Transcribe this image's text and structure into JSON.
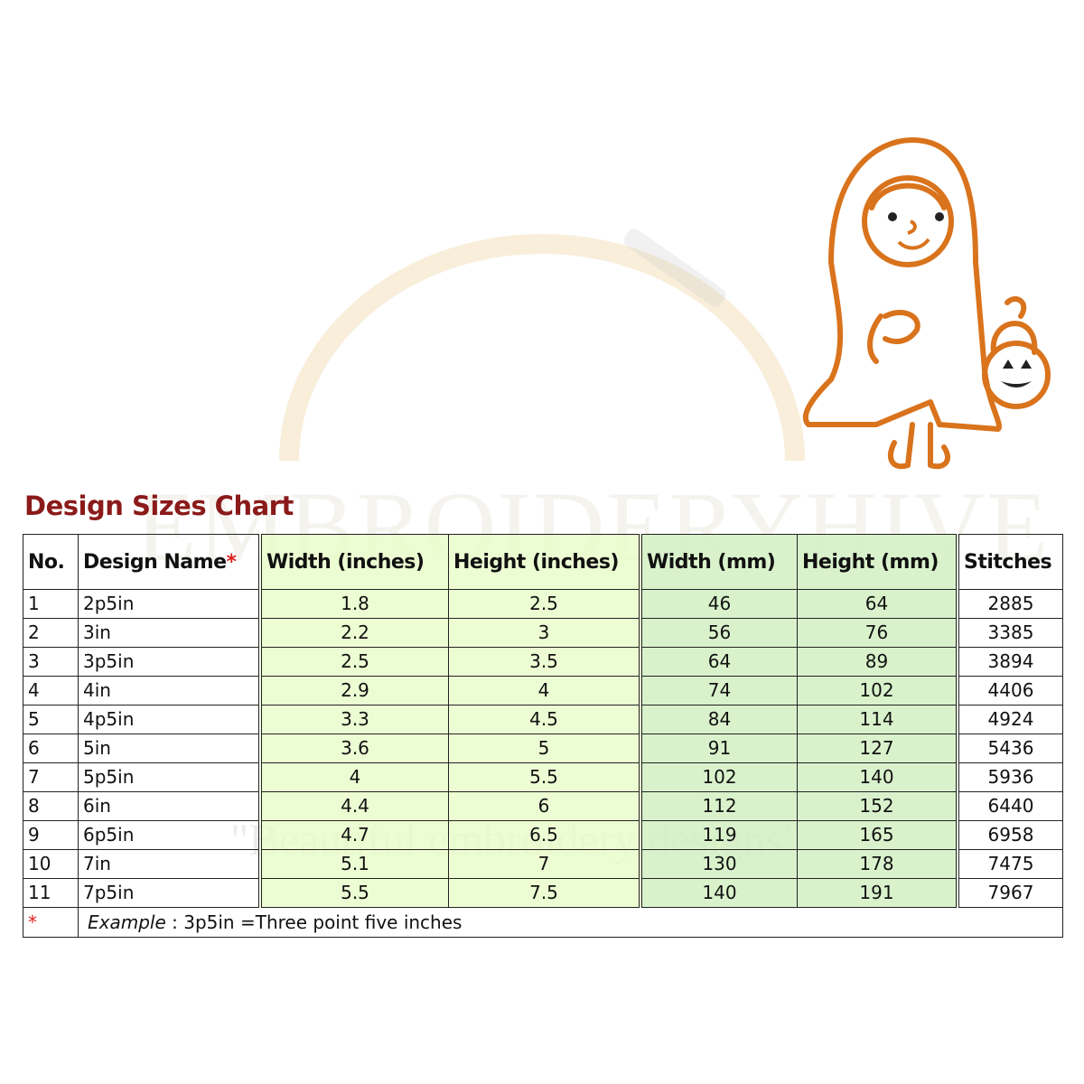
{
  "title": "Design Sizes Chart",
  "watermark": {
    "brand": "EMBROIDERYHIVE",
    "tagline": "\"Beautiful embroidery designs\""
  },
  "colors": {
    "title": "#8b1a1a",
    "asterisk": "#e02020",
    "inch_columns": "#e8fcc8",
    "mm_columns": "#d2f0c3",
    "illustration_stroke": "#d9731c"
  },
  "headers": {
    "no": "No.",
    "name": "Design Name",
    "asterisk": "*",
    "width_in": "Width (inches)",
    "height_in": "Height (inches)",
    "width_mm": "Width (mm)",
    "height_mm": "Height (mm)",
    "stitches": "Stitches"
  },
  "rows": [
    [
      "1",
      "2p5in",
      "1.8",
      "2.5",
      "46",
      "64",
      "2885"
    ],
    [
      "2",
      "3in",
      "2.2",
      "3",
      "56",
      "76",
      "3385"
    ],
    [
      "3",
      "3p5in",
      "2.5",
      "3.5",
      "64",
      "89",
      "3894"
    ],
    [
      "4",
      "4in",
      "2.9",
      "4",
      "74",
      "102",
      "4406"
    ],
    [
      "5",
      "4p5in",
      "3.3",
      "4.5",
      "84",
      "114",
      "4924"
    ],
    [
      "6",
      "5in",
      "3.6",
      "5",
      "91",
      "127",
      "5436"
    ],
    [
      "7",
      "5p5in",
      "4",
      "5.5",
      "102",
      "140",
      "5936"
    ],
    [
      "8",
      "6in",
      "4.4",
      "6",
      "112",
      "152",
      "6440"
    ],
    [
      "9",
      "6p5in",
      "4.7",
      "6.5",
      "119",
      "165",
      "6958"
    ],
    [
      "10",
      "7in",
      "5.1",
      "7",
      "130",
      "178",
      "7475"
    ],
    [
      "11",
      "7p5in",
      "5.5",
      "7.5",
      "140",
      "191",
      "7967"
    ]
  ],
  "footnote": {
    "marker": "*",
    "label": "Example",
    "text": " : 3p5in =Three point five inches"
  }
}
